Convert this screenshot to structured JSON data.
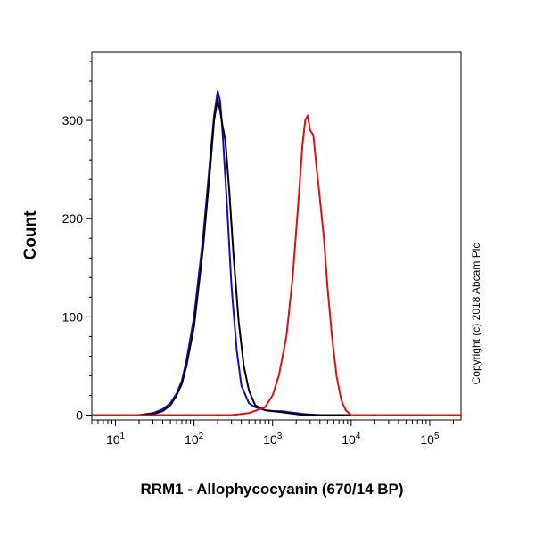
{
  "chart_data": {
    "type": "line",
    "title": "",
    "xlabel": "RRM1 - Allophycocyanin (670/14 BP)",
    "ylabel": "Count",
    "x_scale": "log",
    "xlim": [
      5,
      250000
    ],
    "ylim": [
      -5,
      370
    ],
    "grid": false,
    "legend": "none",
    "x_ticks": [
      {
        "base": "10",
        "exp": "1",
        "value": 10
      },
      {
        "base": "10",
        "exp": "2",
        "value": 100
      },
      {
        "base": "10",
        "exp": "3",
        "value": 1000
      },
      {
        "base": "10",
        "exp": "4",
        "value": 10000
      },
      {
        "base": "10",
        "exp": "5",
        "value": 100000
      }
    ],
    "y_ticks": [
      {
        "label": "0",
        "value": 0
      },
      {
        "label": "100",
        "value": 100
      },
      {
        "label": "200",
        "value": 200
      },
      {
        "label": "300",
        "value": 300
      }
    ],
    "series": [
      {
        "color": "#1010c0",
        "x": [
          5,
          20,
          30,
          40,
          50,
          60,
          70,
          80,
          100,
          130,
          160,
          180,
          200,
          215,
          230,
          260,
          300,
          350,
          400,
          500,
          600,
          800,
          1000,
          1300,
          1600,
          2000,
          2500,
          4000,
          250000
        ],
        "values": [
          0,
          0,
          2,
          6,
          12,
          22,
          35,
          55,
          100,
          180,
          260,
          305,
          330,
          320,
          290,
          220,
          130,
          65,
          30,
          12,
          8,
          5,
          4,
          4,
          3,
          2,
          1,
          0,
          0
        ]
      },
      {
        "color": "#000000",
        "x": [
          5,
          20,
          30,
          40,
          50,
          60,
          70,
          80,
          100,
          130,
          160,
          180,
          200,
          215,
          230,
          250,
          280,
          320,
          370,
          430,
          500,
          600,
          800,
          1000,
          1300,
          1600,
          2000,
          2500,
          4000,
          250000
        ],
        "values": [
          0,
          0,
          1,
          4,
          10,
          20,
          32,
          50,
          90,
          170,
          250,
          300,
          322,
          310,
          295,
          280,
          230,
          160,
          95,
          50,
          25,
          10,
          5,
          4,
          3,
          2,
          1,
          0,
          0,
          0
        ]
      },
      {
        "color": "#e01010",
        "x": [
          5,
          300,
          500,
          800,
          1000,
          1200,
          1500,
          1800,
          2100,
          2400,
          2600,
          2800,
          3000,
          3300,
          3600,
          4000,
          4500,
          5000,
          5700,
          6500,
          7500,
          8500,
          10000,
          250000
        ],
        "values": [
          0,
          0,
          2,
          8,
          20,
          40,
          80,
          140,
          210,
          275,
          300,
          305,
          290,
          285,
          255,
          220,
          180,
          130,
          80,
          40,
          15,
          5,
          0,
          0
        ]
      }
    ]
  },
  "copyright": "Copyright (c) 2018 Abcam Plc"
}
